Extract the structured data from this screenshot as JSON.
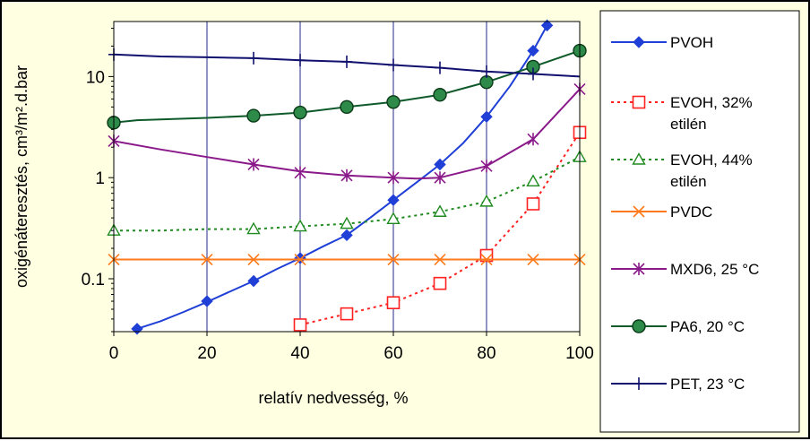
{
  "chart_data": {
    "type": "line",
    "xlabel": "relatív nedvesség, %",
    "ylabel": "oxigénáteresztés, cm³/m².d.bar",
    "xlim": [
      0,
      100
    ],
    "ylim": [
      0.03,
      35
    ],
    "yscale": "log",
    "grid": "vertical",
    "legend_position": "right",
    "x_ticks": [
      "0",
      "20",
      "40",
      "60",
      "80",
      "100"
    ],
    "y_ticks": [
      {
        "value": 0.1,
        "label": "0.1"
      },
      {
        "value": 1,
        "label": "1"
      },
      {
        "value": 10,
        "label": "10"
      }
    ],
    "series": [
      {
        "name": "PVOH",
        "legend_lines": [
          "PVOH"
        ],
        "color": "#1f3fd6",
        "dash": "solid",
        "marker": "diamond",
        "line": [
          [
            5,
            0.032
          ],
          [
            10,
            0.038
          ],
          [
            15,
            0.047
          ],
          [
            20,
            0.059
          ],
          [
            25,
            0.075
          ],
          [
            30,
            0.095
          ],
          [
            35,
            0.125
          ],
          [
            40,
            0.16
          ],
          [
            45,
            0.21
          ],
          [
            50,
            0.27
          ],
          [
            55,
            0.4
          ],
          [
            60,
            0.6
          ],
          [
            65,
            0.9
          ],
          [
            70,
            1.35
          ],
          [
            75,
            2.2
          ],
          [
            80,
            4.0
          ],
          [
            85,
            8.0
          ],
          [
            90,
            18
          ],
          [
            93,
            32
          ]
        ],
        "markers": [
          [
            5,
            0.032
          ],
          [
            20,
            0.06
          ],
          [
            30,
            0.095
          ],
          [
            40,
            0.16
          ],
          [
            50,
            0.27
          ],
          [
            60,
            0.6
          ],
          [
            70,
            1.35
          ],
          [
            80,
            4.0
          ],
          [
            90,
            18
          ],
          [
            93,
            32
          ]
        ]
      },
      {
        "name": "EVOH, 32% etilén",
        "legend_lines": [
          "EVOH, 32%",
          "etilén"
        ],
        "color": "#ff2020",
        "dash": "dotted",
        "marker": "square",
        "line": [
          [
            40,
            0.035
          ],
          [
            50,
            0.045
          ],
          [
            60,
            0.058
          ],
          [
            70,
            0.09
          ],
          [
            80,
            0.17
          ],
          [
            90,
            0.55
          ],
          [
            100,
            2.8
          ]
        ],
        "markers": [
          [
            40,
            0.035
          ],
          [
            50,
            0.045
          ],
          [
            60,
            0.058
          ],
          [
            70,
            0.09
          ],
          [
            80,
            0.17
          ],
          [
            90,
            0.55
          ],
          [
            100,
            2.8
          ]
        ]
      },
      {
        "name": "EVOH, 44% etilén",
        "legend_lines": [
          "EVOH, 44%",
          "etilén"
        ],
        "color": "#1f8a1f",
        "dash": "dotted",
        "marker": "triangle",
        "line": [
          [
            0,
            0.3
          ],
          [
            10,
            0.3
          ],
          [
            20,
            0.31
          ],
          [
            30,
            0.31
          ],
          [
            40,
            0.33
          ],
          [
            50,
            0.35
          ],
          [
            60,
            0.39
          ],
          [
            70,
            0.46
          ],
          [
            80,
            0.58
          ],
          [
            90,
            0.92
          ],
          [
            100,
            1.6
          ]
        ],
        "markers": [
          [
            0,
            0.3
          ],
          [
            30,
            0.31
          ],
          [
            40,
            0.33
          ],
          [
            50,
            0.35
          ],
          [
            60,
            0.39
          ],
          [
            70,
            0.46
          ],
          [
            80,
            0.58
          ],
          [
            90,
            0.92
          ],
          [
            100,
            1.6
          ]
        ]
      },
      {
        "name": "PVDC",
        "legend_lines": [
          "PVDC"
        ],
        "color": "#ff7a1a",
        "dash": "solid",
        "marker": "x",
        "line": [
          [
            0,
            0.155
          ],
          [
            100,
            0.155
          ]
        ],
        "markers": [
          [
            0,
            0.155
          ],
          [
            20,
            0.155
          ],
          [
            30,
            0.155
          ],
          [
            40,
            0.155
          ],
          [
            60,
            0.155
          ],
          [
            70,
            0.155
          ],
          [
            80,
            0.155
          ],
          [
            90,
            0.155
          ],
          [
            100,
            0.155
          ]
        ]
      },
      {
        "name": "MXD6, 25 °C",
        "legend_lines": [
          "MXD6, 25 °C"
        ],
        "color": "#8a1a8a",
        "dash": "solid",
        "marker": "star",
        "line": [
          [
            0,
            2.3
          ],
          [
            10,
            1.9
          ],
          [
            20,
            1.6
          ],
          [
            30,
            1.35
          ],
          [
            40,
            1.15
          ],
          [
            50,
            1.05
          ],
          [
            60,
            1.0
          ],
          [
            65,
            0.98
          ],
          [
            70,
            1.0
          ],
          [
            80,
            1.3
          ],
          [
            90,
            2.4
          ],
          [
            100,
            7.5
          ]
        ],
        "markers": [
          [
            0,
            2.3
          ],
          [
            30,
            1.35
          ],
          [
            40,
            1.12
          ],
          [
            50,
            1.05
          ],
          [
            60,
            1.0
          ],
          [
            70,
            1.0
          ],
          [
            80,
            1.3
          ],
          [
            90,
            2.4
          ],
          [
            100,
            7.5
          ]
        ]
      },
      {
        "name": "PA6, 20 °C",
        "legend_lines": [
          "PA6, 20 °C"
        ],
        "color": "#0f5a2a",
        "dash": "solid",
        "marker": "circle",
        "line": [
          [
            0,
            3.5
          ],
          [
            5,
            3.7
          ],
          [
            20,
            3.9
          ],
          [
            30,
            4.1
          ],
          [
            40,
            4.4
          ],
          [
            50,
            5.0
          ],
          [
            60,
            5.6
          ],
          [
            70,
            6.6
          ],
          [
            80,
            8.8
          ],
          [
            90,
            12.5
          ],
          [
            100,
            18
          ]
        ],
        "markers": [
          [
            0,
            3.5
          ],
          [
            30,
            4.1
          ],
          [
            40,
            4.4
          ],
          [
            50,
            5.0
          ],
          [
            60,
            5.6
          ],
          [
            70,
            6.6
          ],
          [
            80,
            8.8
          ],
          [
            90,
            12.5
          ],
          [
            100,
            18
          ]
        ]
      },
      {
        "name": "PET, 23 °C",
        "legend_lines": [
          "PET, 23 °C"
        ],
        "color": "#10106e",
        "dash": "solid",
        "marker": "plus",
        "line": [
          [
            0,
            16.5
          ],
          [
            10,
            15.8
          ],
          [
            20,
            15.5
          ],
          [
            30,
            15.2
          ],
          [
            40,
            14.5
          ],
          [
            50,
            14
          ],
          [
            60,
            13
          ],
          [
            70,
            12.2
          ],
          [
            80,
            11.2
          ],
          [
            90,
            10.6
          ],
          [
            100,
            10
          ]
        ],
        "markers": [
          [
            0,
            16.5
          ],
          [
            30,
            15.2
          ],
          [
            40,
            14.5
          ],
          [
            50,
            14
          ],
          [
            60,
            13
          ],
          [
            70,
            12.2
          ],
          [
            80,
            11.2
          ],
          [
            90,
            10.6
          ]
        ]
      }
    ]
  }
}
